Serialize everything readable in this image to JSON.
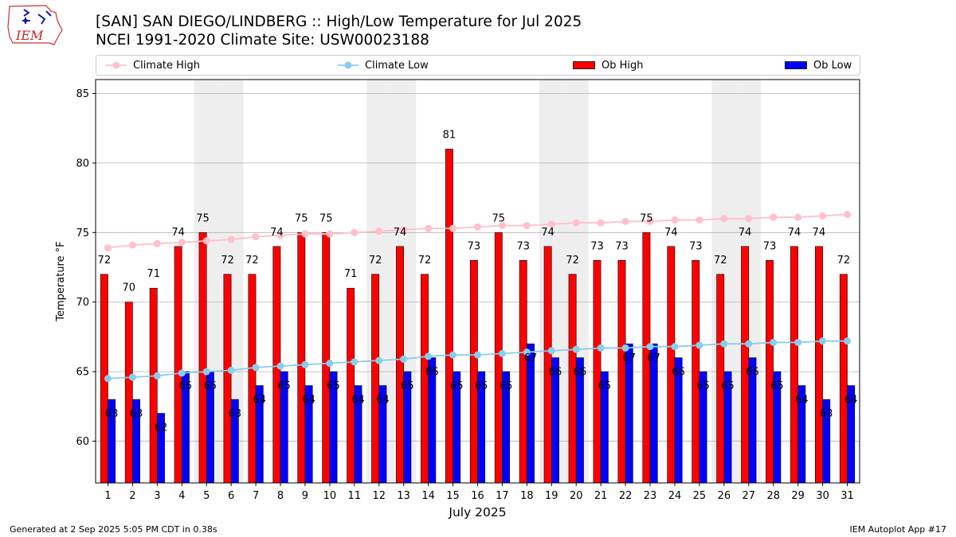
{
  "logo": {
    "text": "IEM"
  },
  "title": {
    "line1": "[SAN] SAN DIEGO/LINDBERG :: High/Low Temperature for Jul 2025",
    "line2": "NCEI 1991-2020 Climate Site: USW00023188"
  },
  "footer": {
    "left": "Generated at 2 Sep 2025 5:05 PM CDT in 0.38s",
    "right": "IEM Autoplot App #17"
  },
  "colors": {
    "ob_high": "#ff0000",
    "ob_low": "#0000ff",
    "climate_high": "#ffc0cb",
    "climate_low": "#87ceeb",
    "weekend_shade": "#eeeeee",
    "grid": "#b0b0b0"
  },
  "chart_data": {
    "type": "bar",
    "xlabel": "July 2025",
    "ylabel": "Temperature °F",
    "ylim": [
      57,
      86
    ],
    "yticks": [
      60,
      65,
      70,
      75,
      80,
      85
    ],
    "grid": true,
    "legend_position": "top",
    "x": [
      1,
      2,
      3,
      4,
      5,
      6,
      7,
      8,
      9,
      10,
      11,
      12,
      13,
      14,
      15,
      16,
      17,
      18,
      19,
      20,
      21,
      22,
      23,
      24,
      25,
      26,
      27,
      28,
      29,
      30,
      31
    ],
    "shaded_days": [
      5,
      6,
      12,
      13,
      19,
      20,
      26,
      27
    ],
    "series": [
      {
        "name": "Climate High",
        "kind": "line",
        "values": [
          73.9,
          74.1,
          74.2,
          74.3,
          74.4,
          74.5,
          74.7,
          74.8,
          74.9,
          74.9,
          75.0,
          75.1,
          75.2,
          75.3,
          75.3,
          75.4,
          75.5,
          75.5,
          75.6,
          75.7,
          75.7,
          75.8,
          75.8,
          75.9,
          75.9,
          76.0,
          76.0,
          76.1,
          76.1,
          76.2,
          76.3
        ]
      },
      {
        "name": "Climate Low",
        "kind": "line",
        "values": [
          64.5,
          64.6,
          64.7,
          64.9,
          65.0,
          65.1,
          65.3,
          65.4,
          65.5,
          65.6,
          65.7,
          65.8,
          65.9,
          66.1,
          66.2,
          66.2,
          66.3,
          66.4,
          66.5,
          66.6,
          66.7,
          66.7,
          66.8,
          66.8,
          66.9,
          67.0,
          67.0,
          67.1,
          67.1,
          67.2,
          67.2
        ]
      },
      {
        "name": "Ob High",
        "kind": "bar",
        "values": [
          72,
          70,
          71,
          74,
          75,
          72,
          72,
          74,
          75,
          75,
          71,
          72,
          74,
          72,
          81,
          73,
          75,
          73,
          74,
          72,
          73,
          73,
          75,
          74,
          73,
          72,
          74,
          73,
          74,
          74,
          72
        ]
      },
      {
        "name": "Ob Low",
        "kind": "bar",
        "values": [
          63,
          63,
          62,
          65,
          65,
          63,
          64,
          65,
          64,
          65,
          64,
          64,
          65,
          66,
          65,
          65,
          65,
          67,
          66,
          66,
          65,
          67,
          67,
          66,
          65,
          65,
          66,
          65,
          64,
          63,
          64
        ]
      }
    ]
  }
}
